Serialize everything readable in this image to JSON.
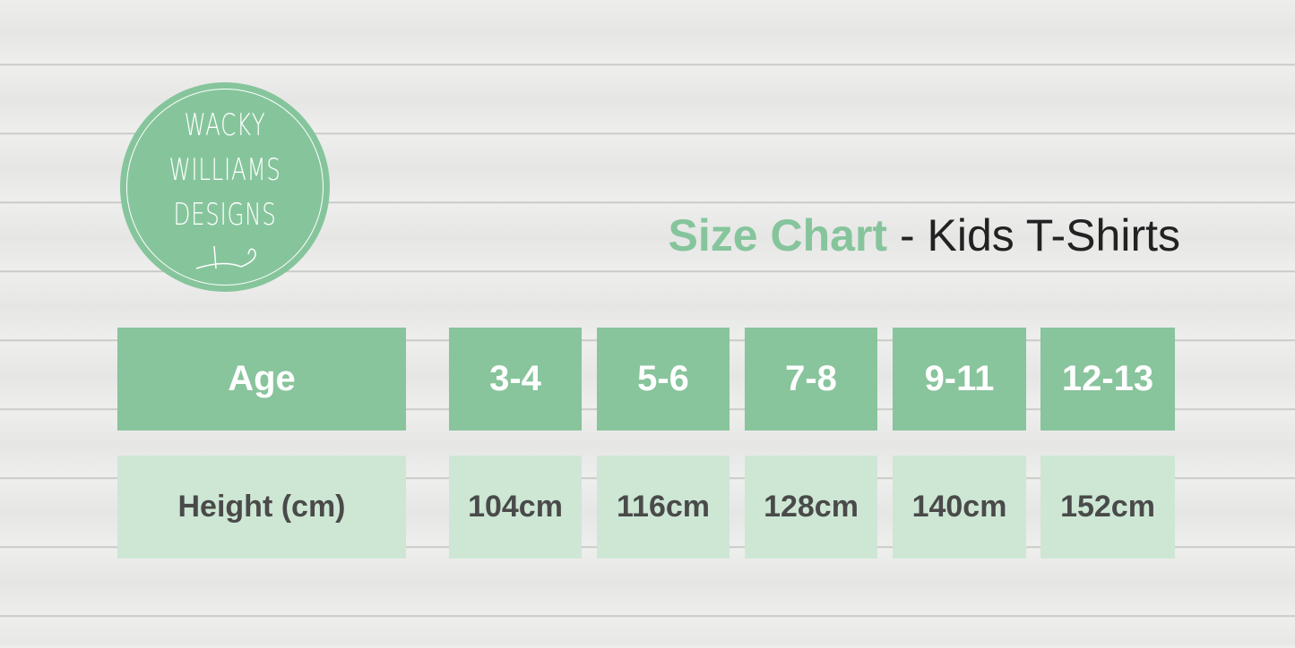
{
  "logo": {
    "line1": "WACKY",
    "line2": "WILLIAMS",
    "line3": "DESIGNS",
    "color": "#86c59c"
  },
  "title": {
    "highlight": "Size Chart",
    "rest": " - Kids T-Shirts"
  },
  "table": {
    "header_label": "Age",
    "ages": [
      "3-4",
      "5-6",
      "7-8",
      "9-11",
      "12-13"
    ],
    "row_label": "Height (cm)",
    "heights": [
      "104cm",
      "116cm",
      "128cm",
      "140cm",
      "152cm"
    ]
  },
  "colors": {
    "header": "#88c49c",
    "row": "#cde7d4",
    "text": "#4a4a4a"
  }
}
